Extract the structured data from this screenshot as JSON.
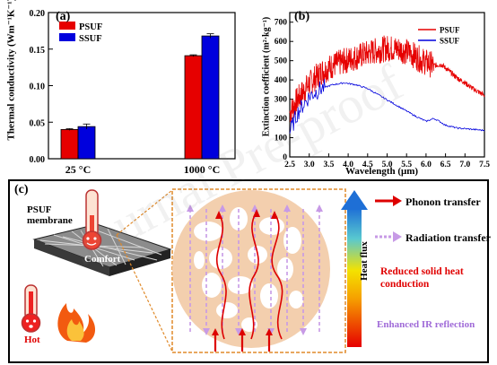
{
  "colors": {
    "psuf": "#e60000",
    "ssuf": "#0000dd",
    "phonon_arrow": "#dd0000",
    "radiation_arrow": "#c79ae6",
    "reduced_text": "#e00000",
    "enhanced_text": "#a06bd8",
    "circle_fill": "#f3cfae",
    "frame": "#e08a2a",
    "hot_text": "#e00000",
    "comfort_text": "#ffffff"
  },
  "watermark": "Journal Pre-proof",
  "panel_a": {
    "letter": "(a)",
    "ylabel": "Thermal conductivity (Wm⁻¹K⁻¹)",
    "yticks": [
      "0.00",
      "0.05",
      "0.10",
      "0.15",
      "0.20"
    ],
    "chart_data": {
      "type": "bar",
      "categories": [
        "25 °C",
        "1000 °C"
      ],
      "series": [
        {
          "name": "PSUF",
          "values": [
            0.04,
            0.141
          ],
          "errors": [
            0.0012,
            0.0012
          ]
        },
        {
          "name": "SSUF",
          "values": [
            0.044,
            0.168
          ],
          "errors": [
            0.0035,
            0.003
          ]
        }
      ],
      "ylim": [
        0,
        0.2
      ],
      "legend": "top-left"
    }
  },
  "panel_b": {
    "letter": "(b)",
    "ylabel": "Extinction coefficient (m²·kg⁻¹)",
    "xlabel": "Wavelength (μm)",
    "xticks": [
      "2.5",
      "3.0",
      "3.5",
      "4.0",
      "4.5",
      "5.0",
      "5.5",
      "6.0",
      "6.5",
      "7.0",
      "7.5"
    ],
    "yticks": [
      "0",
      "100",
      "200",
      "300",
      "400",
      "500",
      "600",
      "700"
    ],
    "chart_data": {
      "type": "line",
      "xlim": [
        2.5,
        7.5
      ],
      "ylim": [
        0,
        750
      ],
      "legend": "top-right",
      "series": [
        {
          "name": "PSUF",
          "x": [
            2.5,
            2.7,
            3.0,
            3.3,
            3.6,
            4.0,
            4.3,
            4.6,
            5.0,
            5.3,
            5.6,
            5.9,
            6.2,
            6.4,
            6.6,
            6.8,
            7.0,
            7.2,
            7.5
          ],
          "y": [
            230,
            300,
            380,
            440,
            475,
            505,
            525,
            545,
            565,
            560,
            540,
            500,
            475,
            480,
            445,
            410,
            385,
            355,
            320
          ]
        },
        {
          "name": "SSUF",
          "x": [
            2.5,
            2.7,
            3.0,
            3.3,
            3.6,
            3.9,
            4.2,
            4.5,
            4.8,
            5.1,
            5.4,
            5.7,
            6.0,
            6.2,
            6.3,
            6.5,
            6.8,
            7.1,
            7.5
          ],
          "y": [
            130,
            230,
            315,
            355,
            375,
            385,
            375,
            355,
            320,
            285,
            250,
            215,
            185,
            200,
            190,
            165,
            150,
            145,
            138
          ]
        }
      ]
    }
  },
  "panel_c": {
    "letter": "(c)",
    "membrane_label": "PSUF\nmembrane",
    "comfort_label": "Comfort",
    "hot_label": "Hot",
    "heat_flux_label": "Heat flux",
    "legend_phonon": "Phonon transfer",
    "legend_radiation": "Radiation transfer",
    "reduced_text": "Reduced solid heat conduction",
    "enhanced_text": "Enhanced IR reflection"
  }
}
